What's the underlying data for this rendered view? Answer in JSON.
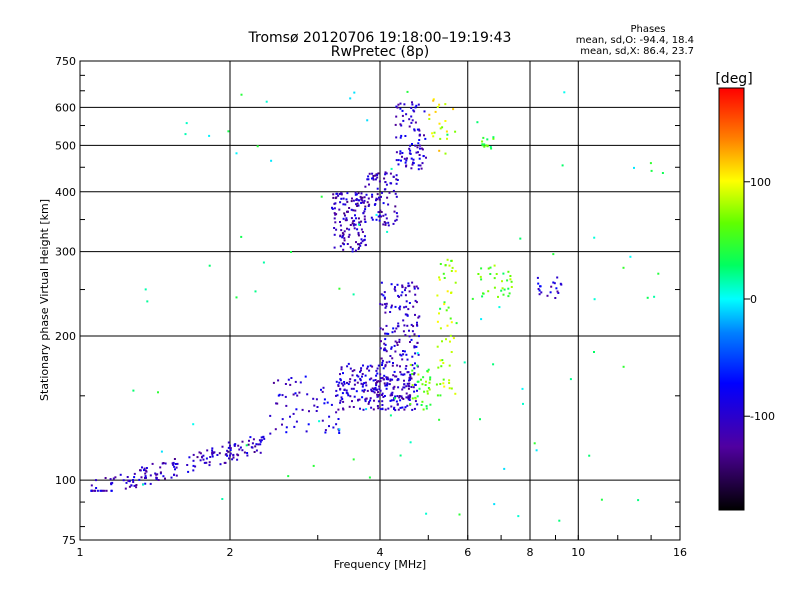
{
  "chart_data": {
    "type": "scatter",
    "title": "Tromsø 20120706 19:18:00–19:19:43",
    "subtitle": "RwPretec (8p)",
    "xlabel": "Frequency [MHz]",
    "ylabel": "Stationary phase Virtual Height [km]",
    "x_scale": "log",
    "y_scale": "log",
    "xlim": [
      1,
      16
    ],
    "ylim": [
      75,
      750
    ],
    "x_ticks": [
      1,
      2,
      4,
      6,
      8,
      10,
      16
    ],
    "x_tick_labels": [
      "1",
      "2",
      "4",
      "6",
      "8",
      "10",
      "16"
    ],
    "y_ticks": [
      75,
      100,
      200,
      300,
      400,
      500,
      600,
      750
    ],
    "y_tick_labels": [
      "75",
      "100",
      "200",
      "300",
      "400",
      "500",
      "600",
      "750"
    ],
    "grid": true,
    "phase_stats": {
      "heading": "Phases",
      "o_line": "mean, sd,O: -94.4, 18.4",
      "x_line": "mean, sd,X:  86.4, 23.7"
    },
    "colorbar": {
      "label": "[deg]",
      "range": [
        -180,
        180
      ],
      "ticks": [
        100,
        0,
        -100
      ],
      "tick_labels": [
        "100",
        "0",
        "-100"
      ]
    },
    "clusters": [
      {
        "f": [
          1.05,
          2.35
        ],
        "h": [
          95,
          125
        ],
        "phase": -105,
        "n": 180
      },
      {
        "f": [
          2.4,
          3.4
        ],
        "h": [
          125,
          165
        ],
        "phase": -100,
        "n": 70
      },
      {
        "f": [
          3.3,
          4.0
        ],
        "h": [
          140,
          175
        ],
        "phase": -100,
        "n": 110
      },
      {
        "f": [
          3.9,
          4.75
        ],
        "h": [
          140,
          165
        ],
        "phase": -105,
        "n": 130
      },
      {
        "f": [
          4.0,
          4.8
        ],
        "h": [
          165,
          260
        ],
        "phase": -100,
        "n": 160
      },
      {
        "f": [
          4.6,
          5.1
        ],
        "h": [
          140,
          175
        ],
        "phase": 60,
        "n": 35
      },
      {
        "f": [
          5.2,
          5.7
        ],
        "h": [
          150,
          290
        ],
        "phase": 75,
        "n": 55
      },
      {
        "f": [
          3.2,
          3.75
        ],
        "h": [
          300,
          400
        ],
        "phase": -110,
        "n": 140
      },
      {
        "f": [
          3.7,
          4.35
        ],
        "h": [
          340,
          440
        ],
        "phase": -105,
        "n": 90
      },
      {
        "f": [
          4.3,
          4.95
        ],
        "h": [
          440,
          620
        ],
        "phase": -100,
        "n": 90
      },
      {
        "f": [
          5.0,
          5.7
        ],
        "h": [
          480,
          630
        ],
        "phase": 95,
        "n": 22
      },
      {
        "f": [
          6.4,
          6.8
        ],
        "h": [
          490,
          520
        ],
        "phase": 45,
        "n": 14
      },
      {
        "f": [
          6.3,
          7.4
        ],
        "h": [
          240,
          285
        ],
        "phase": 55,
        "n": 30
      },
      {
        "f": [
          8.2,
          9.3
        ],
        "h": [
          240,
          265
        ],
        "phase": -100,
        "n": 20
      },
      {
        "f": [
          1.2,
          15.0
        ],
        "h": [
          80,
          650
        ],
        "phase": 20,
        "n": 90
      }
    ]
  }
}
